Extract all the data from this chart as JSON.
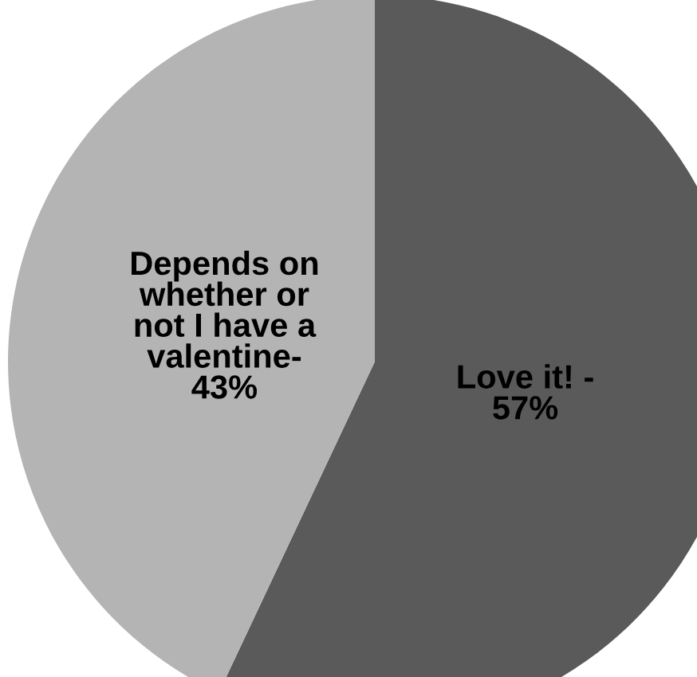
{
  "chart_data": {
    "type": "pie",
    "categories": [
      "Love it! -\n57%",
      "Depends on\nwhether or\nnot I have a\nvalentine-\n43%"
    ],
    "values": [
      57,
      43
    ],
    "colors": [
      "#5a5a5a",
      "#b4b4b4"
    ]
  }
}
